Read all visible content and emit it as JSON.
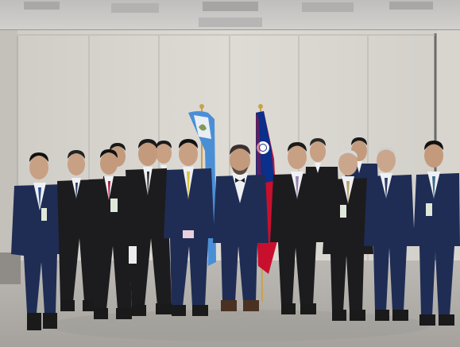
{
  "photo": {
    "subject": "group-photo",
    "person_count": 17,
    "flags": [
      "flag-of-guatemala",
      "flag-of-republic-of-china"
    ],
    "colors": {
      "wall": "#dcd9d3",
      "ceiling": "#c9c8c6",
      "floor": "#b2afaa",
      "suit_navy": "#1f2d55",
      "suit_black": "#1c1c1f",
      "shirt": "#eef0f3",
      "flag_blue": "#4a8fd6",
      "flag_roc_red": "#c8102e",
      "flag_roc_blue": "#0b2f8a"
    }
  }
}
